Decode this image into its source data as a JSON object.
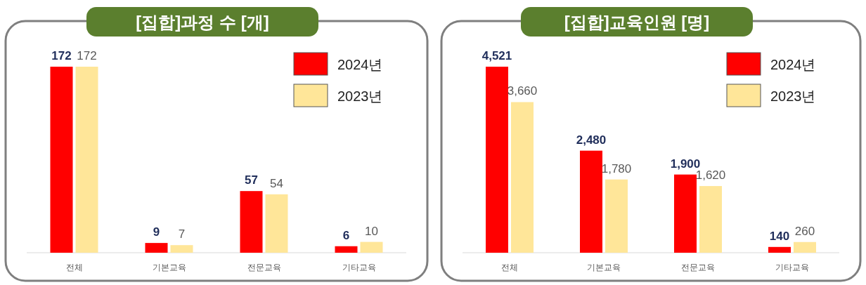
{
  "chart_data": [
    {
      "type": "bar",
      "title": "[집합]과정 수 [개]",
      "categories": [
        "전체",
        "기본교육",
        "전문교육",
        "기타교육"
      ],
      "legend": "top right",
      "series": [
        {
          "name": "2024년",
          "color": "#ff0000",
          "values": [
            172,
            9,
            57,
            6
          ],
          "value_labels": [
            "172",
            "9",
            "57",
            "6"
          ]
        },
        {
          "name": "2023년",
          "color": "#ffe699",
          "values": [
            172,
            7,
            54,
            10
          ],
          "value_labels": [
            "172",
            "7",
            "54",
            "10"
          ]
        }
      ]
    },
    {
      "type": "bar",
      "title": "[집합]교육인원 [명]",
      "categories": [
        "전체",
        "기본교육",
        "전문교육",
        "기타교육"
      ],
      "legend": "top right",
      "series": [
        {
          "name": "2024년",
          "color": "#ff0000",
          "values": [
            4521,
            2480,
            1900,
            140
          ],
          "value_labels": [
            "4,521",
            "2,480",
            "1,900",
            "140"
          ]
        },
        {
          "name": "2023년",
          "color": "#ffe699",
          "values": [
            3660,
            1780,
            1620,
            260
          ],
          "value_labels": [
            "3,660",
            "1,780",
            "1,620",
            "260"
          ]
        }
      ]
    }
  ]
}
